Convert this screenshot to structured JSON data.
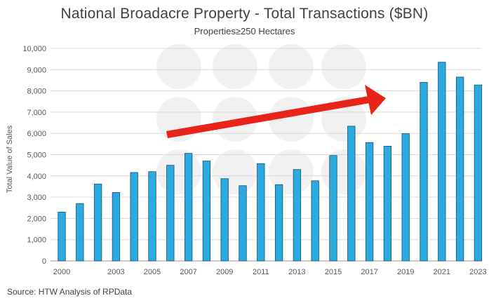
{
  "chart_data": {
    "type": "bar",
    "title": "National Broadacre Property - Total Transactions ($BN)",
    "subtitle": "Properties≥250 Hectares",
    "ylabel": "Total Value of Sales",
    "xlabel": "",
    "ylim": [
      0,
      10000
    ],
    "yticks": [
      0,
      1000,
      2000,
      3000,
      4000,
      5000,
      6000,
      7000,
      8000,
      9000,
      10000
    ],
    "ytick_labels": [
      "0",
      "1,000",
      "2,000",
      "3,000",
      "4,000",
      "5,000",
      "6,000",
      "7,000",
      "8,000",
      "9,000",
      "10,000"
    ],
    "categories": [
      "2000",
      "2001",
      "2002",
      "2003",
      "2004",
      "2005",
      "2006",
      "2007",
      "2008",
      "2009",
      "2010",
      "2011",
      "2012",
      "2013",
      "2014",
      "2015",
      "2016",
      "2017",
      "2018",
      "2019",
      "2020",
      "2021",
      "2022",
      "2023"
    ],
    "xtick_labels": [
      "2000",
      "",
      "",
      "2003",
      "",
      "2005",
      "",
      "2007",
      "",
      "2009",
      "",
      "2011",
      "",
      "2013",
      "",
      "2015",
      "",
      "2017",
      "",
      "2019",
      "",
      "2021",
      "",
      "2023"
    ],
    "values": [
      2300,
      2700,
      3620,
      3220,
      4160,
      4200,
      4500,
      5060,
      4700,
      3870,
      3540,
      4580,
      3590,
      4300,
      3770,
      4960,
      6340,
      5570,
      5400,
      5990,
      8400,
      9350,
      8650,
      8280
    ],
    "grid": true,
    "bar_color": "#29ABE2",
    "bar_edge_color": "#1f4e6b",
    "annotation": {
      "type": "trend-arrow",
      "color": "#E8231A"
    }
  },
  "footer": {
    "source": "Source: HTW Analysis of RPData"
  }
}
